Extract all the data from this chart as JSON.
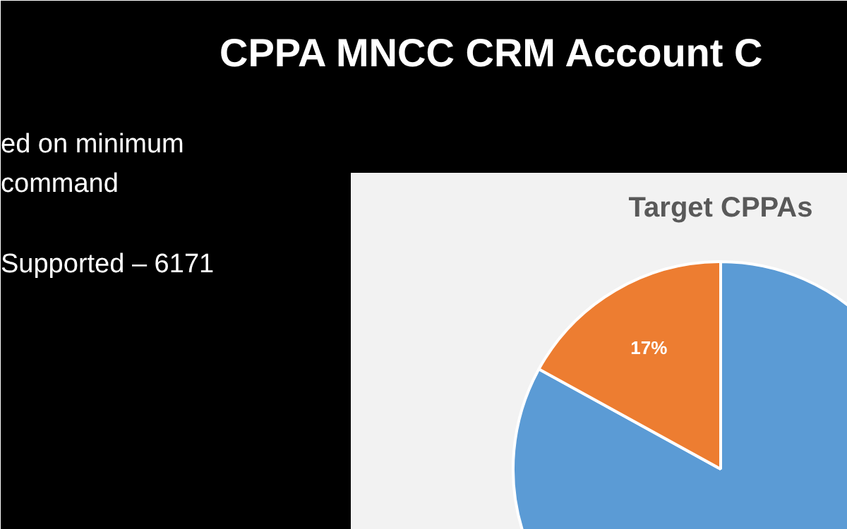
{
  "chart_data": {
    "type": "pie",
    "title": "Target CPPAs",
    "categories": [
      null,
      null
    ],
    "values": [
      83,
      17
    ],
    "colors": [
      "#5b9bd5",
      "#ed7d31"
    ],
    "value_labels": [
      null,
      "17%"
    ],
    "annotations": [
      "CPPA MNCC CRM Account C",
      "ed on minimum",
      "command",
      "Supported – 6171"
    ]
  }
}
